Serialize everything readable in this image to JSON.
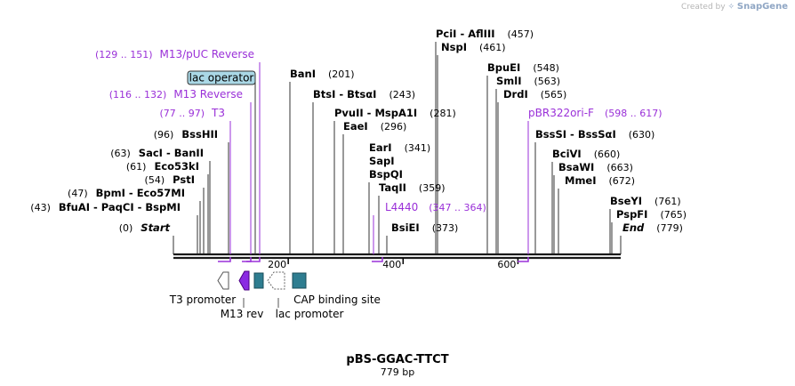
{
  "brand": {
    "prefix": "Created by",
    "name": "SnapGene"
  },
  "plasmid": {
    "name": "pBS-GGAC-TTCT",
    "length_label": "779 bp"
  },
  "axis": {
    "ticks": [
      {
        "value": 200,
        "label": "200"
      },
      {
        "value": 400,
        "label": "400"
      },
      {
        "value": 600,
        "label": "600"
      }
    ]
  },
  "sites": [
    {
      "enzymes": [
        "Start"
      ],
      "position": "(0)",
      "italic": true
    },
    {
      "enzymes": [
        "BfuAI",
        "PaqCI",
        "BspMI"
      ],
      "position": "(43)"
    },
    {
      "enzymes": [
        "BpmI",
        "Eco57MI"
      ],
      "position": "(47)"
    },
    {
      "enzymes": [
        "PstI"
      ],
      "position": "(54)"
    },
    {
      "enzymes": [
        "Eco53kI"
      ],
      "position": "(61)"
    },
    {
      "enzymes": [
        "SacI",
        "BanII"
      ],
      "position": "(63)"
    },
    {
      "enzymes": [
        "BssHII"
      ],
      "position": "(96)"
    },
    {
      "enzymes": [
        "BanI"
      ],
      "position": "(201)"
    },
    {
      "enzymes": [
        "BtsI",
        "BtsαI"
      ],
      "position": "(243)"
    },
    {
      "enzymes": [
        "PvuII",
        "MspA1I"
      ],
      "position": "(281)"
    },
    {
      "enzymes": [
        "EaeI"
      ],
      "position": "(296)"
    },
    {
      "enzymes": [
        "EarI"
      ],
      "position": "(341)"
    },
    {
      "enzymes": [
        "SapI"
      ],
      "position": ""
    },
    {
      "enzymes": [
        "BspQI"
      ],
      "position": ""
    },
    {
      "enzymes": [
        "TaqII"
      ],
      "position": "(359)"
    },
    {
      "enzymes": [
        "BsiEI"
      ],
      "position": "(373)"
    },
    {
      "enzymes": [
        "PciI",
        "AflIII"
      ],
      "position": "(457)"
    },
    {
      "enzymes": [
        "NspI"
      ],
      "position": "(461)"
    },
    {
      "enzymes": [
        "BpuEI"
      ],
      "position": "(548)"
    },
    {
      "enzymes": [
        "SmlI"
      ],
      "position": "(563)"
    },
    {
      "enzymes": [
        "DrdI"
      ],
      "position": "(565)"
    },
    {
      "enzymes": [
        "BssSI",
        "BssSαI"
      ],
      "position": "(630)"
    },
    {
      "enzymes": [
        "BciVI"
      ],
      "position": "(660)"
    },
    {
      "enzymes": [
        "BsaWI"
      ],
      "position": "(663)"
    },
    {
      "enzymes": [
        "MmeI"
      ],
      "position": "(672)"
    },
    {
      "enzymes": [
        "BseYI"
      ],
      "position": "(761)"
    },
    {
      "enzymes": [
        "PspFI"
      ],
      "position": "(765)"
    },
    {
      "enzymes": [
        "End"
      ],
      "position": "(779)",
      "italic": true
    }
  ],
  "primers": [
    {
      "name": "M13/pUC Reverse",
      "range": "(129 .. 151)"
    },
    {
      "name": "M13 Reverse",
      "range": "(116 .. 132)"
    },
    {
      "name": "T3",
      "range": "(77 .. 97)"
    },
    {
      "name": "L4440",
      "range": "(347 .. 364)"
    },
    {
      "name": "pBR322ori-F",
      "range": "(598 .. 617)"
    }
  ],
  "features": [
    {
      "name": "T3 promoter"
    },
    {
      "name": "M13 rev"
    },
    {
      "name": "lac promoter"
    },
    {
      "name": "CAP binding site"
    },
    {
      "name": "lac operator"
    }
  ],
  "colors": {
    "primer": "#9a30d8",
    "backbone": "#1a1a1a",
    "feature_teal": "#2e7d90",
    "feature_purple": "#8a2be2",
    "operator_fill": "#aad8e6"
  }
}
